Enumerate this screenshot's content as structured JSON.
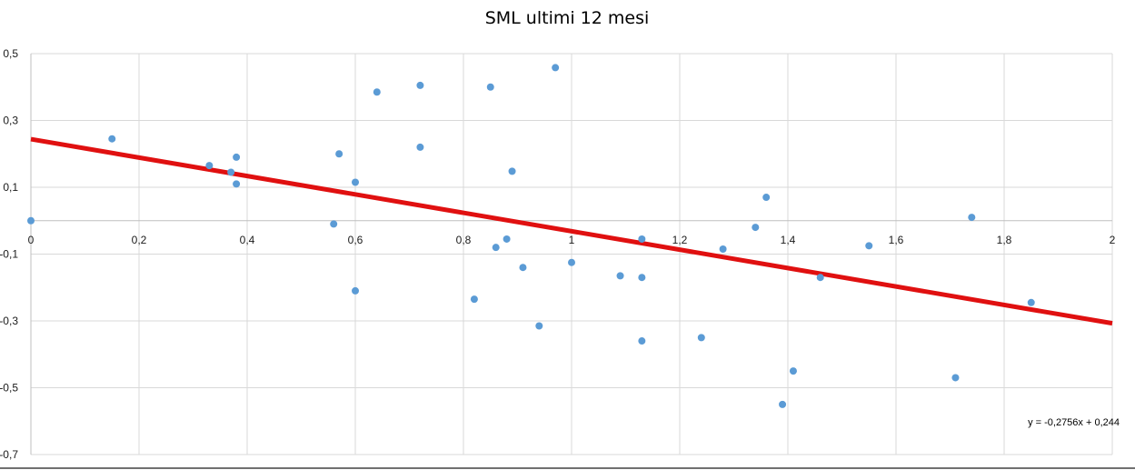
{
  "chart_data": {
    "type": "scatter",
    "title": "SML ultimi 12 mesi",
    "xlim": [
      0,
      2
    ],
    "ylim": [
      -0.7,
      0.5
    ],
    "x_ticks": [
      0,
      0.2,
      0.4,
      0.6,
      0.8,
      1,
      1.2,
      1.4,
      1.6,
      1.8,
      2
    ],
    "x_tick_labels": [
      "0",
      "0,2",
      "0,4",
      "0,6",
      "0,8",
      "1",
      "1,2",
      "1,4",
      "1,6",
      "1,8",
      "2"
    ],
    "y_ticks": [
      0.5,
      0.3,
      0.1,
      -0.1,
      -0.3,
      -0.5,
      -0.7
    ],
    "y_tick_labels": [
      "0,5",
      "0,3",
      "0,1",
      "-0,1",
      "-0,3",
      "-0,5",
      "-0,7"
    ],
    "grid": true,
    "legend": "none",
    "colors": {
      "points": "#5b9bd5",
      "trendline": "#e01010",
      "grid": "#d9d9d9",
      "axis": "#bfbfbf"
    },
    "points": [
      {
        "x": 0.0,
        "y": 0.0
      },
      {
        "x": 0.15,
        "y": 0.245
      },
      {
        "x": 0.33,
        "y": 0.165
      },
      {
        "x": 0.37,
        "y": 0.145
      },
      {
        "x": 0.38,
        "y": 0.19
      },
      {
        "x": 0.38,
        "y": 0.11
      },
      {
        "x": 0.56,
        "y": -0.01
      },
      {
        "x": 0.57,
        "y": 0.2
      },
      {
        "x": 0.6,
        "y": 0.115
      },
      {
        "x": 0.6,
        "y": -0.21
      },
      {
        "x": 0.64,
        "y": 0.385
      },
      {
        "x": 0.72,
        "y": 0.405
      },
      {
        "x": 0.72,
        "y": 0.22
      },
      {
        "x": 0.82,
        "y": -0.235
      },
      {
        "x": 0.85,
        "y": 0.4
      },
      {
        "x": 0.86,
        "y": -0.08
      },
      {
        "x": 0.88,
        "y": -0.055
      },
      {
        "x": 0.89,
        "y": 0.148
      },
      {
        "x": 0.91,
        "y": -0.14
      },
      {
        "x": 0.94,
        "y": -0.315
      },
      {
        "x": 0.97,
        "y": 0.458
      },
      {
        "x": 1.0,
        "y": -0.125
      },
      {
        "x": 1.09,
        "y": -0.165
      },
      {
        "x": 1.13,
        "y": -0.055
      },
      {
        "x": 1.13,
        "y": -0.17
      },
      {
        "x": 1.13,
        "y": -0.36
      },
      {
        "x": 1.24,
        "y": -0.35
      },
      {
        "x": 1.28,
        "y": -0.085
      },
      {
        "x": 1.34,
        "y": -0.02
      },
      {
        "x": 1.36,
        "y": 0.07
      },
      {
        "x": 1.39,
        "y": -0.55
      },
      {
        "x": 1.41,
        "y": -0.45
      },
      {
        "x": 1.46,
        "y": -0.17
      },
      {
        "x": 1.55,
        "y": -0.075
      },
      {
        "x": 1.71,
        "y": -0.47
      },
      {
        "x": 1.74,
        "y": 0.01
      },
      {
        "x": 1.85,
        "y": -0.245
      }
    ],
    "trendline": {
      "slope": -0.2756,
      "intercept": 0.244,
      "label": "y = -0,2756x + 0,244"
    }
  }
}
